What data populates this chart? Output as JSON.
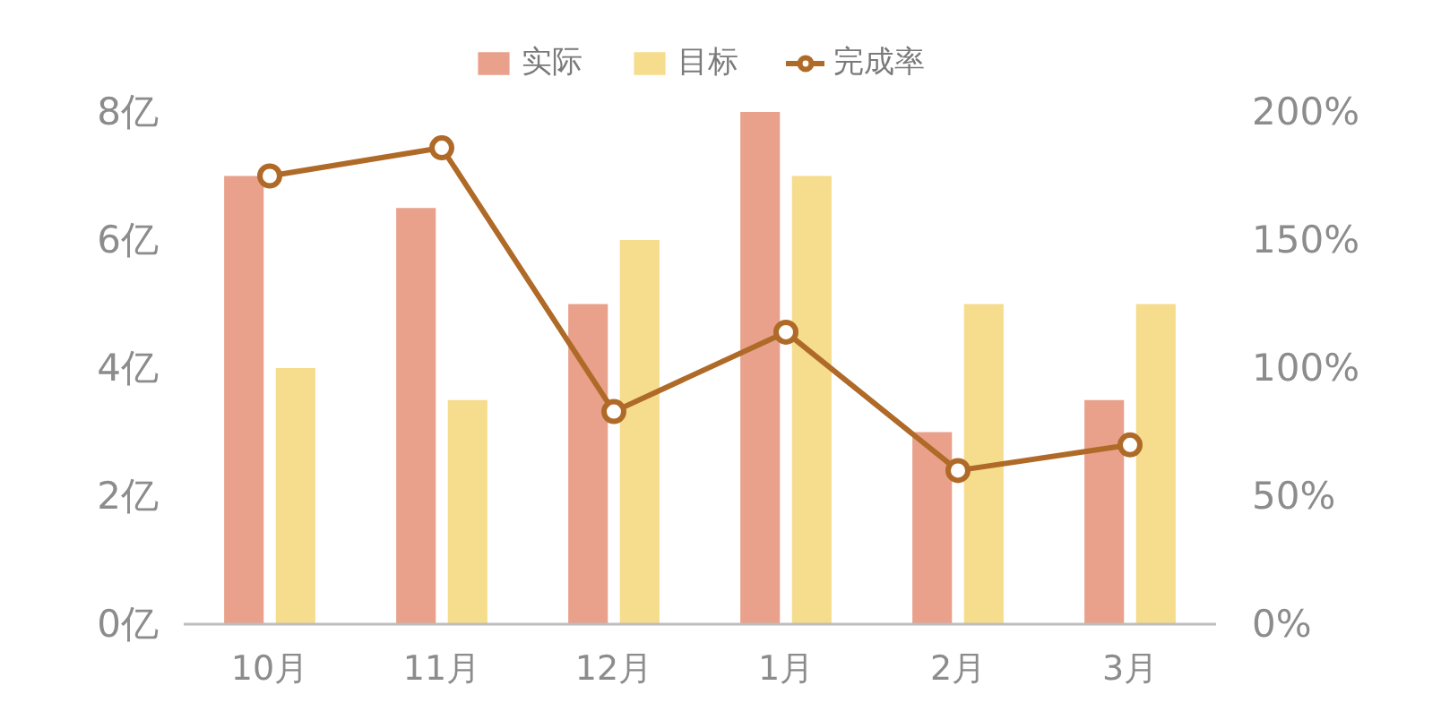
{
  "chart_data": {
    "type": "bar",
    "categories": [
      "10月",
      "11月",
      "12月",
      "1月",
      "2月",
      "3月"
    ],
    "series": [
      {
        "name": "实际",
        "color": "#e9a18b",
        "values": [
          7,
          6.5,
          5,
          8,
          3,
          3.5
        ]
      },
      {
        "name": "目标",
        "color": "#f6dc8d",
        "values": [
          4,
          3.5,
          6,
          7,
          5,
          5
        ]
      },
      {
        "name": "完成率",
        "type": "line",
        "axis": "y2",
        "color": "#b06a28",
        "values": [
          175,
          186,
          83,
          114,
          60,
          70
        ]
      }
    ],
    "ylim": [
      0,
      8
    ],
    "yticks": [
      {
        "value": 0,
        "label": "0亿"
      },
      {
        "value": 2,
        "label": "2亿"
      },
      {
        "value": 4,
        "label": "4亿"
      },
      {
        "value": 6,
        "label": "6亿"
      },
      {
        "value": 8,
        "label": "8亿"
      }
    ],
    "y2lim": [
      0,
      200
    ],
    "y2ticks": [
      {
        "value": 0,
        "label": "0%"
      },
      {
        "value": 50,
        "label": "50%"
      },
      {
        "value": 100,
        "label": "100%"
      },
      {
        "value": 150,
        "label": "150%"
      },
      {
        "value": 200,
        "label": "200%"
      }
    ],
    "legend": "top",
    "marker": "circle",
    "line_style": "solid",
    "grid": false
  }
}
